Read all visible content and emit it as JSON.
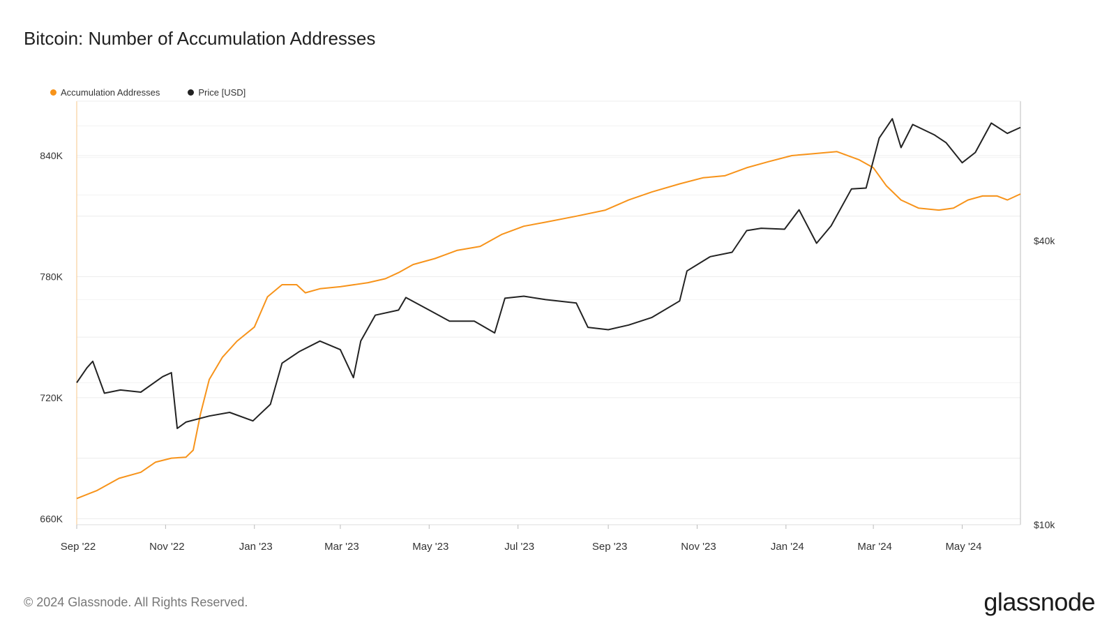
{
  "chart_data": {
    "title": "Bitcoin: Number of Accumulation Addresses",
    "type": "line",
    "legend_placement": "top-left",
    "grid": true,
    "x_ticks": [
      "Sep '22",
      "Nov '22",
      "Jan '23",
      "Mar '23",
      "May '23",
      "Jul '23",
      "Sep '23",
      "Nov '23",
      "Jan '24",
      "Mar '24",
      "May '24"
    ],
    "x_range": [
      "2022-09-01",
      "2024-06-10"
    ],
    "y_left": {
      "ticks": [
        "660K",
        "720K",
        "780K",
        "840K"
      ],
      "tick_values": [
        660000,
        720000,
        780000,
        840000
      ],
      "range": [
        657000,
        867000
      ]
    },
    "y_right": {
      "scale": "log",
      "ticks": [
        "$10k",
        "$40k"
      ],
      "tick_values": [
        10000,
        40000
      ],
      "range": [
        10000,
        79000
      ]
    },
    "series": [
      {
        "name": "Accumulation Addresses",
        "color": "#f7931a",
        "axis": "left",
        "points": [
          [
            "2022-09-01",
            670000
          ],
          [
            "2022-09-15",
            674000
          ],
          [
            "2022-09-30",
            680000
          ],
          [
            "2022-10-15",
            683000
          ],
          [
            "2022-10-25",
            688000
          ],
          [
            "2022-11-05",
            690000
          ],
          [
            "2022-11-15",
            690500
          ],
          [
            "2022-11-20",
            694000
          ],
          [
            "2022-11-25",
            712000
          ],
          [
            "2022-12-01",
            729000
          ],
          [
            "2022-12-10",
            740000
          ],
          [
            "2022-12-20",
            748000
          ],
          [
            "2023-01-01",
            755000
          ],
          [
            "2023-01-10",
            770000
          ],
          [
            "2023-01-20",
            776000
          ],
          [
            "2023-01-30",
            776000
          ],
          [
            "2023-02-05",
            772000
          ],
          [
            "2023-02-15",
            774000
          ],
          [
            "2023-03-01",
            775000
          ],
          [
            "2023-03-20",
            777000
          ],
          [
            "2023-04-01",
            779000
          ],
          [
            "2023-04-10",
            782000
          ],
          [
            "2023-04-20",
            786000
          ],
          [
            "2023-05-05",
            789000
          ],
          [
            "2023-05-20",
            793000
          ],
          [
            "2023-06-05",
            795000
          ],
          [
            "2023-06-20",
            801000
          ],
          [
            "2023-07-05",
            805000
          ],
          [
            "2023-07-20",
            807000
          ],
          [
            "2023-08-10",
            810000
          ],
          [
            "2023-08-30",
            813000
          ],
          [
            "2023-09-15",
            818000
          ],
          [
            "2023-10-01",
            822000
          ],
          [
            "2023-10-20",
            826000
          ],
          [
            "2023-11-05",
            829000
          ],
          [
            "2023-11-20",
            830000
          ],
          [
            "2023-12-05",
            834000
          ],
          [
            "2023-12-20",
            837000
          ],
          [
            "2024-01-05",
            840000
          ],
          [
            "2024-01-20",
            841000
          ],
          [
            "2024-02-05",
            842000
          ],
          [
            "2024-02-20",
            838000
          ],
          [
            "2024-03-01",
            834000
          ],
          [
            "2024-03-10",
            825000
          ],
          [
            "2024-03-20",
            818000
          ],
          [
            "2024-04-01",
            814000
          ],
          [
            "2024-04-15",
            813000
          ],
          [
            "2024-04-25",
            814000
          ],
          [
            "2024-05-05",
            818000
          ],
          [
            "2024-05-15",
            820000
          ],
          [
            "2024-05-25",
            820000
          ],
          [
            "2024-06-01",
            818000
          ],
          [
            "2024-06-10",
            821000
          ]
        ]
      },
      {
        "name": "Price [USD]",
        "color": "#222222",
        "axis": "right",
        "points": [
          [
            "2022-09-01",
            20000
          ],
          [
            "2022-09-08",
            21500
          ],
          [
            "2022-09-12",
            22200
          ],
          [
            "2022-09-20",
            19000
          ],
          [
            "2022-10-01",
            19300
          ],
          [
            "2022-10-15",
            19100
          ],
          [
            "2022-10-30",
            20600
          ],
          [
            "2022-11-05",
            21000
          ],
          [
            "2022-11-09",
            16000
          ],
          [
            "2022-11-15",
            16500
          ],
          [
            "2022-12-01",
            17000
          ],
          [
            "2022-12-15",
            17300
          ],
          [
            "2022-12-31",
            16600
          ],
          [
            "2023-01-12",
            18000
          ],
          [
            "2023-01-20",
            22000
          ],
          [
            "2023-02-01",
            23300
          ],
          [
            "2023-02-15",
            24500
          ],
          [
            "2023-03-01",
            23500
          ],
          [
            "2023-03-10",
            20500
          ],
          [
            "2023-03-15",
            24500
          ],
          [
            "2023-03-25",
            27800
          ],
          [
            "2023-04-10",
            28500
          ],
          [
            "2023-04-15",
            30300
          ],
          [
            "2023-05-01",
            28500
          ],
          [
            "2023-05-15",
            27000
          ],
          [
            "2023-06-01",
            27000
          ],
          [
            "2023-06-15",
            25500
          ],
          [
            "2023-06-22",
            30200
          ],
          [
            "2023-07-05",
            30500
          ],
          [
            "2023-07-20",
            30000
          ],
          [
            "2023-08-10",
            29500
          ],
          [
            "2023-08-18",
            26200
          ],
          [
            "2023-09-01",
            25900
          ],
          [
            "2023-09-15",
            26500
          ],
          [
            "2023-10-01",
            27500
          ],
          [
            "2023-10-20",
            29800
          ],
          [
            "2023-10-25",
            34500
          ],
          [
            "2023-11-10",
            37000
          ],
          [
            "2023-11-25",
            37800
          ],
          [
            "2023-12-05",
            42000
          ],
          [
            "2023-12-15",
            42500
          ],
          [
            "2023-12-31",
            42300
          ],
          [
            "2024-01-10",
            46500
          ],
          [
            "2024-01-22",
            39500
          ],
          [
            "2024-02-01",
            43000
          ],
          [
            "2024-02-15",
            51500
          ],
          [
            "2024-02-25",
            51700
          ],
          [
            "2024-03-05",
            66000
          ],
          [
            "2024-03-14",
            72500
          ],
          [
            "2024-03-20",
            63000
          ],
          [
            "2024-03-28",
            70500
          ],
          [
            "2024-04-12",
            67000
          ],
          [
            "2024-04-20",
            64500
          ],
          [
            "2024-05-01",
            58500
          ],
          [
            "2024-05-10",
            61500
          ],
          [
            "2024-05-21",
            71000
          ],
          [
            "2024-06-01",
            67500
          ],
          [
            "2024-06-10",
            69500
          ]
        ]
      }
    ]
  },
  "footer": {
    "copyright": "© 2024 Glassnode. All Rights Reserved.",
    "logo_text": "glassnode"
  }
}
